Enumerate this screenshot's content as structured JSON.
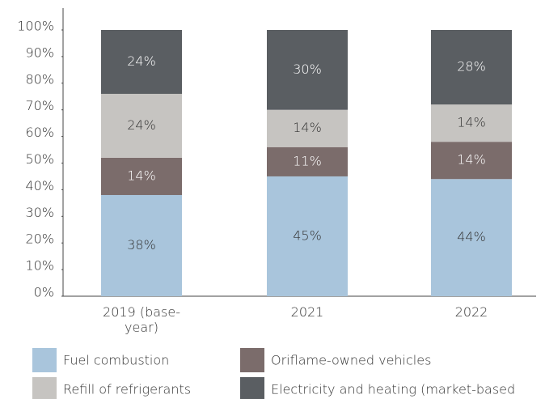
{
  "chart_data": {
    "type": "stacked-bar",
    "categories": [
      "2019 (base-year)",
      "2021",
      "2022"
    ],
    "series": [
      {
        "name": "Fuel combustion",
        "color": "#a9c5dc",
        "values": [
          38,
          45,
          44
        ],
        "value_labels": [
          "38%",
          "45%",
          "44%"
        ]
      },
      {
        "name": "Oriflame-owned vehicles",
        "color": "#7b6c6b",
        "values": [
          14,
          11,
          14
        ],
        "value_labels": [
          "14%",
          "11%",
          "14%"
        ]
      },
      {
        "name": "Refill of refrigerants",
        "color": "#c6c4c1",
        "values": [
          24,
          14,
          14
        ],
        "value_labels": [
          "24%",
          "14%",
          "14%"
        ]
      },
      {
        "name": "Electricity and heating (market-based",
        "color": "#5a5e62",
        "values": [
          24,
          30,
          28
        ],
        "value_labels": [
          "24%",
          "30%",
          "28%"
        ]
      }
    ],
    "ylim": [
      0,
      100
    ],
    "yticks": [
      {
        "value": 0,
        "label": "0%"
      },
      {
        "value": 10,
        "label": "10%"
      },
      {
        "value": 20,
        "label": "20%"
      },
      {
        "value": 30,
        "label": "30%"
      },
      {
        "value": 40,
        "label": "40%"
      },
      {
        "value": 50,
        "label": "50%"
      },
      {
        "value": 60,
        "label": "60%"
      },
      {
        "value": 70,
        "label": "70%"
      },
      {
        "value": 80,
        "label": "80%"
      },
      {
        "value": 90,
        "label": "90%"
      },
      {
        "value": 100,
        "label": "100%"
      }
    ],
    "grid": false
  }
}
